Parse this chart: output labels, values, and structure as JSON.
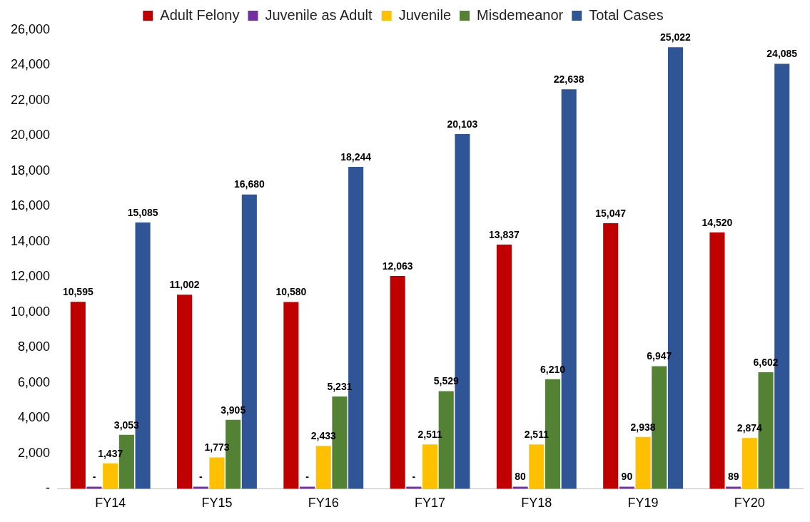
{
  "chart_data": {
    "type": "bar",
    "categories": [
      "FY14",
      "FY15",
      "FY16",
      "FY17",
      "FY18",
      "FY19",
      "FY20"
    ],
    "series": [
      {
        "name": "Adult Felony",
        "color": "#c00000",
        "values": [
          10595,
          11002,
          10580,
          12063,
          13837,
          15047,
          14520
        ],
        "value_labels": [
          "10,595",
          "11,002",
          "10,580",
          "12,063",
          "13,837",
          "15,047",
          "14,520"
        ]
      },
      {
        "name": "Juvenile as Adult",
        "color": "#7030a0",
        "values": [
          0,
          0,
          0,
          0,
          80,
          90,
          89
        ],
        "value_labels": [
          "-",
          "-",
          "-",
          "-",
          "80",
          "90",
          "89"
        ]
      },
      {
        "name": "Juvenile",
        "color": "#ffc000",
        "values": [
          1437,
          1773,
          2433,
          2511,
          2511,
          2938,
          2874
        ],
        "value_labels": [
          "1,437",
          "1,773",
          "2,433",
          "2,511",
          "2,511",
          "2,938",
          "2,874"
        ]
      },
      {
        "name": "Misdemeanor",
        "color": "#548235",
        "values": [
          3053,
          3905,
          5231,
          5529,
          6210,
          6947,
          6602
        ],
        "value_labels": [
          "3,053",
          "3,905",
          "5,231",
          "5,529",
          "6,210",
          "6,947",
          "6,602"
        ]
      },
      {
        "name": "Total Cases",
        "color": "#2f5597",
        "values": [
          15085,
          16680,
          18244,
          20103,
          22638,
          25022,
          24085
        ],
        "value_labels": [
          "15,085",
          "16,680",
          "18,244",
          "20,103",
          "22,638",
          "25,022",
          "24,085"
        ]
      }
    ],
    "ylim": [
      0,
      26000
    ],
    "yticks": [
      {
        "value": 0,
        "label": "-"
      },
      {
        "value": 2000,
        "label": "2,000"
      },
      {
        "value": 4000,
        "label": "4,000"
      },
      {
        "value": 6000,
        "label": "6,000"
      },
      {
        "value": 8000,
        "label": "8,000"
      },
      {
        "value": 10000,
        "label": "10,000"
      },
      {
        "value": 12000,
        "label": "12,000"
      },
      {
        "value": 14000,
        "label": "14,000"
      },
      {
        "value": 16000,
        "label": "16,000"
      },
      {
        "value": 18000,
        "label": "18,000"
      },
      {
        "value": 20000,
        "label": "20,000"
      },
      {
        "value": 22000,
        "label": "22,000"
      },
      {
        "value": 24000,
        "label": "24,000"
      },
      {
        "value": 26000,
        "label": "26,000"
      }
    ],
    "grid": false,
    "legend": "top"
  }
}
